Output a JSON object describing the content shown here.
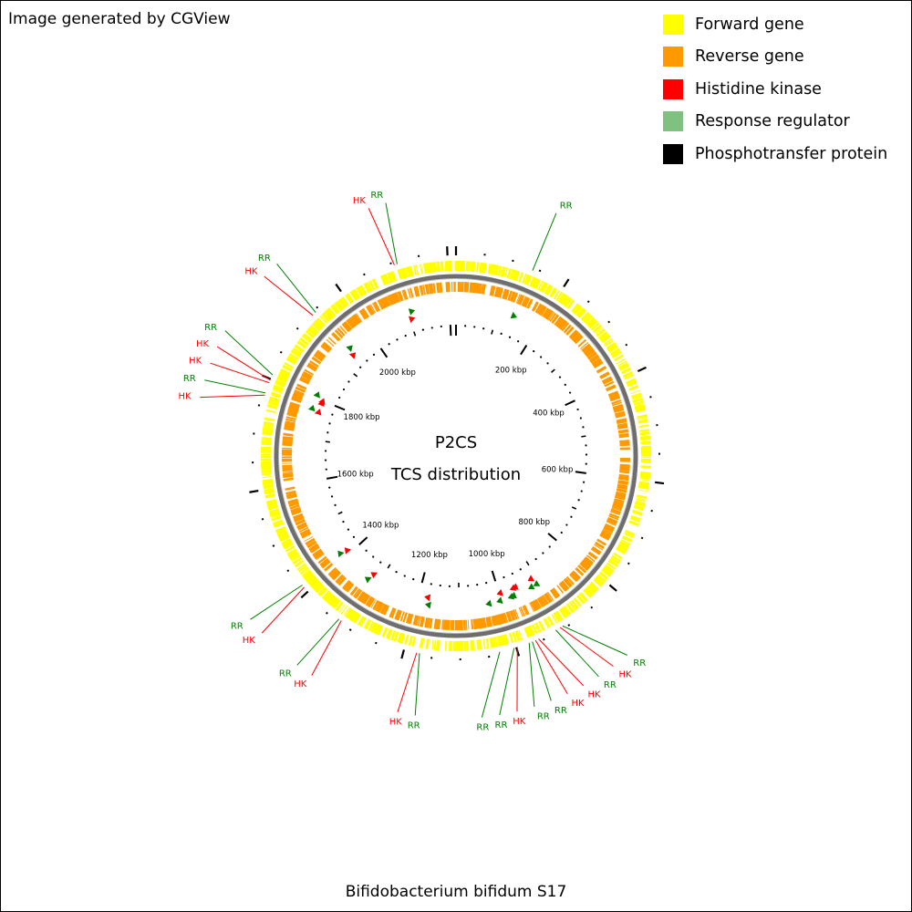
{
  "credit": "Image generated by CGView",
  "footer_title": "Bifidobacterium bifidum S17",
  "center_title": "P2CS",
  "center_subtitle": "TCS distribution",
  "legend": [
    {
      "label": "Forward gene",
      "color": "#ffff00"
    },
    {
      "label": "Reverse gene",
      "color": "#ff9900"
    },
    {
      "label": "Histidine kinase",
      "color": "#ff0000"
    },
    {
      "label": "Response regulator",
      "color": "#80c080"
    },
    {
      "label": "Phosphotransfer protein",
      "color": "#000000"
    }
  ],
  "genome_kbp": 2215,
  "scale_labels": [
    {
      "kbp": 200,
      "text": "200 kbp"
    },
    {
      "kbp": 400,
      "text": "400 kbp"
    },
    {
      "kbp": 600,
      "text": "600 kbp"
    },
    {
      "kbp": 800,
      "text": "800 kbp"
    },
    {
      "kbp": 1000,
      "text": "1000 kbp"
    },
    {
      "kbp": 1200,
      "text": "1200 kbp"
    },
    {
      "kbp": 1400,
      "text": "1400 kbp"
    },
    {
      "kbp": 1600,
      "text": "1600 kbp"
    },
    {
      "kbp": 1800,
      "text": "1800 kbp"
    },
    {
      "kbp": 2000,
      "text": "2000 kbp"
    }
  ],
  "tcs_features": [
    {
      "kbp": 138,
      "type": "RR",
      "label": "RR",
      "color": "#008000"
    },
    {
      "kbp": 910,
      "type": "RR",
      "label": "RR",
      "color": "#008000"
    },
    {
      "kbp": 915,
      "type": "HK",
      "label": "HK",
      "color": "#ff0000"
    },
    {
      "kbp": 924,
      "type": "RR",
      "label": "RR",
      "color": "#008000"
    },
    {
      "kbp": 958,
      "type": "HK",
      "label": "HK",
      "color": "#ff0000"
    },
    {
      "kbp": 964,
      "type": "HK",
      "label": "HK",
      "color": "#ff0000"
    },
    {
      "kbp": 970,
      "type": "RR",
      "label": "RR",
      "color": "#008000"
    },
    {
      "kbp": 976,
      "type": "RR",
      "label": "RR",
      "color": "#008000"
    },
    {
      "kbp": 998,
      "type": "HK",
      "label": "HK",
      "color": "#ff0000"
    },
    {
      "kbp": 1004,
      "type": "RR",
      "label": "RR",
      "color": "#008000"
    },
    {
      "kbp": 1030,
      "type": "RR",
      "label": "RR",
      "color": "#008000"
    },
    {
      "kbp": 1172,
      "type": "RR",
      "label": "RR",
      "color": "#008000"
    },
    {
      "kbp": 1177,
      "type": "HK",
      "label": "HK",
      "color": "#ff0000"
    },
    {
      "kbp": 1322,
      "type": "HK",
      "label": "HK",
      "color": "#ff0000"
    },
    {
      "kbp": 1327,
      "type": "RR",
      "label": "RR",
      "color": "#008000"
    },
    {
      "kbp": 1410,
      "type": "HK",
      "label": "HK",
      "color": "#ff0000"
    },
    {
      "kbp": 1415,
      "type": "RR",
      "label": "RR",
      "color": "#008000"
    },
    {
      "kbp": 1770,
      "type": "HK",
      "label": "HK",
      "color": "#ff0000"
    },
    {
      "kbp": 1774,
      "type": "RR",
      "label": "RR",
      "color": "#008000"
    },
    {
      "kbp": 1793,
      "type": "HK",
      "label": "HK",
      "color": "#ff0000"
    },
    {
      "kbp": 1798,
      "type": "HK",
      "label": "HK",
      "color": "#ff0000"
    },
    {
      "kbp": 1808,
      "type": "RR",
      "label": "RR",
      "color": "#008000"
    },
    {
      "kbp": 1935,
      "type": "HK",
      "label": "HK",
      "color": "#ff0000"
    },
    {
      "kbp": 1942,
      "type": "RR",
      "label": "RR",
      "color": "#008000"
    },
    {
      "kbp": 2105,
      "type": "HK",
      "label": "HK",
      "color": "#ff0000"
    },
    {
      "kbp": 2110,
      "type": "RR",
      "label": "RR",
      "color": "#008000"
    }
  ]
}
